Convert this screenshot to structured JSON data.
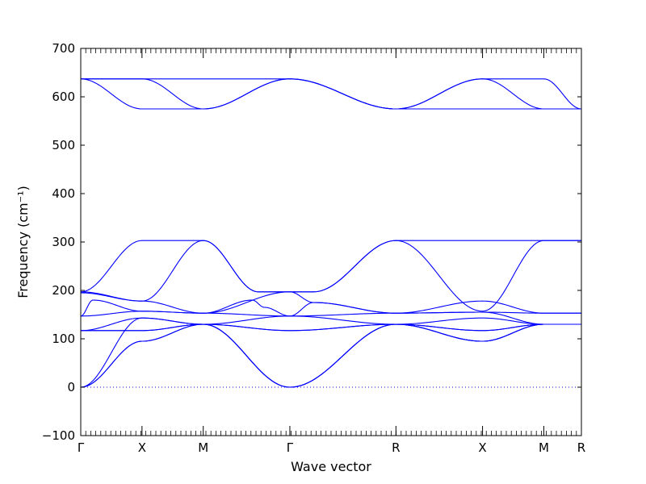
{
  "chart_data": {
    "type": "line",
    "xlabel": "Wave vector",
    "ylabel": "Frequency (cm⁻¹)",
    "ylim": [
      -100,
      700
    ],
    "yticks": [
      -100,
      0,
      100,
      200,
      300,
      400,
      500,
      600,
      700
    ],
    "grid": false,
    "line_color": "#0000ff",
    "zero_line": {
      "y": 0,
      "style": "dotted",
      "color": "#0000ff"
    },
    "high_symmetry_points": [
      {
        "label": "Γ",
        "k": 0.0
      },
      {
        "label": "X",
        "k": 0.5
      },
      {
        "label": "M",
        "k": 1.0
      },
      {
        "label": "Γ",
        "k": 1.707
      },
      {
        "label": "R",
        "k": 2.573
      },
      {
        "label": "X",
        "k": 3.28
      },
      {
        "label": "M",
        "k": 3.78
      },
      {
        "label": "R",
        "k": 4.087
      }
    ],
    "series": [
      {
        "segments": [
          [
            [
              0,
              637
            ],
            [
              0.5,
              637
            ],
            [
              1.0,
              637
            ],
            [
              1.707,
              637
            ],
            [
              2.573,
              575
            ],
            [
              3.28,
              637
            ],
            [
              3.78,
              637
            ],
            [
              4.087,
              575
            ]
          ]
        ]
      },
      {
        "segments": [
          [
            [
              0,
              637
            ],
            [
              0.5,
              637
            ],
            [
              1.0,
              575
            ],
            [
              1.707,
              637
            ],
            [
              2.573,
              575
            ],
            [
              3.28,
              637
            ],
            [
              3.78,
              575
            ],
            [
              4.087,
              575
            ]
          ]
        ]
      },
      {
        "segments": [
          [
            [
              0,
              637
            ],
            [
              0.5,
              575
            ],
            [
              1.0,
              575
            ],
            [
              1.707,
              637
            ],
            [
              2.573,
              575
            ],
            [
              3.28,
              575
            ],
            [
              3.78,
              575
            ],
            [
              4.087,
              575
            ]
          ]
        ]
      },
      {
        "segments": [
          [
            [
              0,
              197
            ],
            [
              0.5,
              303
            ],
            [
              1.0,
              303
            ],
            [
              1.45,
              197
            ],
            [
              1.707,
              197
            ],
            [
              1.9,
              197
            ],
            [
              2.573,
              303
            ],
            [
              3.28,
              157
            ],
            [
              3.78,
              303
            ],
            [
              4.087,
              303
            ]
          ]
        ]
      },
      {
        "segments": [
          [
            [
              0,
              197
            ],
            [
              0.5,
              178
            ],
            [
              1.0,
              303
            ],
            [
              1.45,
              197
            ],
            [
              1.707,
              197
            ],
            [
              1.9,
              197
            ],
            [
              2.573,
              303
            ],
            [
              3.28,
              303
            ],
            [
              3.78,
              303
            ],
            [
              4.087,
              303
            ]
          ]
        ]
      },
      {
        "segments": [
          [
            [
              0,
              195
            ],
            [
              0.5,
              178
            ],
            [
              1.0,
              153
            ],
            [
              1.4,
              180
            ],
            [
              1.5,
              165
            ],
            [
              1.707,
              147
            ],
            [
              1.9,
              175
            ],
            [
              2.573,
              153
            ],
            [
              3.28,
              178
            ],
            [
              3.78,
              153
            ],
            [
              4.087,
              153
            ]
          ]
        ]
      },
      {
        "segments": [
          [
            [
              0,
              147
            ],
            [
              0.1,
              180
            ],
            [
              0.5,
              157
            ],
            [
              1.0,
              153
            ],
            [
              1.707,
              197
            ],
            [
              1.9,
              175
            ],
            [
              2.573,
              153
            ],
            [
              3.28,
              155
            ],
            [
              3.78,
              153
            ],
            [
              4.087,
              153
            ]
          ]
        ]
      },
      {
        "segments": [
          [
            [
              0,
              147
            ],
            [
              0.5,
              157
            ],
            [
              1.0,
              153
            ],
            [
              1.707,
              147
            ],
            [
              2.573,
              153
            ],
            [
              3.28,
              155
            ],
            [
              3.78,
              130
            ],
            [
              4.087,
              130
            ]
          ]
        ]
      },
      {
        "segments": [
          [
            [
              0,
              117
            ],
            [
              0.5,
              143
            ],
            [
              1.0,
              130
            ],
            [
              1.707,
              147
            ],
            [
              2.573,
              130
            ],
            [
              3.28,
              143
            ],
            [
              3.78,
              130
            ],
            [
              4.087,
              130
            ]
          ]
        ]
      },
      {
        "segments": [
          [
            [
              0,
              117
            ],
            [
              0.5,
              117
            ],
            [
              1.0,
              130
            ],
            [
              1.707,
              117
            ],
            [
              2.573,
              130
            ],
            [
              3.28,
              117
            ],
            [
              3.78,
              130
            ],
            [
              4.087,
              130
            ]
          ]
        ]
      },
      {
        "segments": [
          [
            [
              0,
              117
            ],
            [
              0.5,
              117
            ],
            [
              1.0,
              130
            ],
            [
              1.707,
              117
            ],
            [
              2.573,
              130
            ],
            [
              3.28,
              117
            ],
            [
              3.78,
              130
            ],
            [
              4.087,
              130
            ]
          ]
        ]
      },
      {
        "segments": [
          [
            [
              0,
              0
            ],
            [
              0.5,
              143
            ],
            [
              1.0,
              130
            ],
            [
              1.707,
              0
            ],
            [
              2.573,
              130
            ],
            [
              3.28,
              95
            ],
            [
              3.78,
              130
            ],
            [
              4.087,
              130
            ]
          ]
        ]
      },
      {
        "segments": [
          [
            [
              0,
              0
            ],
            [
              0.5,
              95
            ],
            [
              1.0,
              130
            ],
            [
              1.707,
              0
            ],
            [
              2.573,
              130
            ],
            [
              3.28,
              95
            ],
            [
              3.78,
              130
            ],
            [
              4.087,
              130
            ]
          ]
        ]
      },
      {
        "segments": [
          [
            [
              0,
              0
            ],
            [
              0.5,
              95
            ],
            [
              1.0,
              130
            ],
            [
              1.707,
              0
            ],
            [
              2.573,
              130
            ],
            [
              3.28,
              95
            ],
            [
              3.78,
              130
            ],
            [
              4.087,
              130
            ]
          ]
        ]
      }
    ]
  }
}
